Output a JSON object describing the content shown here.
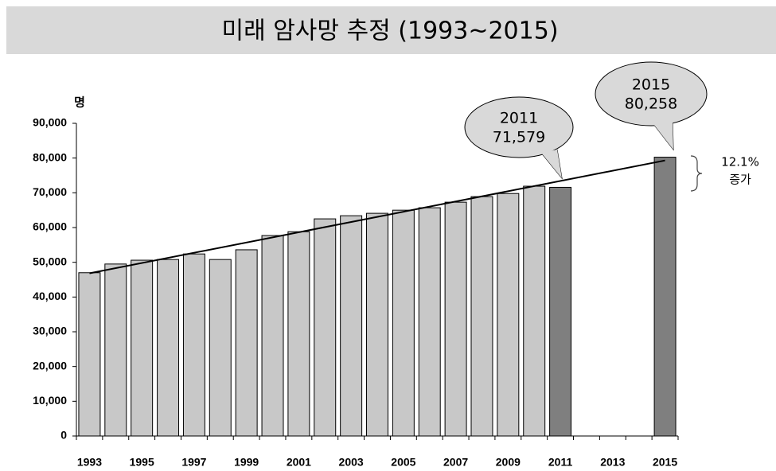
{
  "chart_data": {
    "type": "bar",
    "title": "미래 암사망 추정 (1993~2015)",
    "y_unit_label": "명",
    "categories": [
      "1993",
      null,
      "1995",
      null,
      "1997",
      null,
      "1999",
      null,
      "2001",
      null,
      "2003",
      null,
      "2005",
      null,
      "2007",
      null,
      "2009",
      null,
      "2011",
      null,
      "2013",
      null,
      "2015"
    ],
    "values": [
      47000,
      49500,
      50600,
      50800,
      52400,
      50800,
      53600,
      57700,
      58800,
      62500,
      63400,
      64100,
      65000,
      65700,
      67300,
      68900,
      69800,
      71900,
      71579,
      null,
      null,
      null,
      80258
    ],
    "colors": [
      "#c8c8c8",
      "#c8c8c8",
      "#c8c8c8",
      "#c8c8c8",
      "#c8c8c8",
      "#c8c8c8",
      "#c8c8c8",
      "#c8c8c8",
      "#c8c8c8",
      "#c8c8c8",
      "#c8c8c8",
      "#c8c8c8",
      "#c8c8c8",
      "#c8c8c8",
      "#c8c8c8",
      "#c8c8c8",
      "#c8c8c8",
      "#c8c8c8",
      "#7f7f7f",
      null,
      null,
      null,
      "#7f7f7f"
    ],
    "ylim": [
      0,
      90000
    ],
    "yticks": [
      0,
      {
        "value": 10000,
        "label": "10,000"
      },
      {
        "value": 20000,
        "label": "20,000"
      },
      {
        "value": 30000,
        "label": "30,000"
      },
      {
        "value": 40000,
        "label": "40,000"
      },
      {
        "value": 50000,
        "label": "50,000"
      },
      {
        "value": 60000,
        "label": "60,000"
      },
      {
        "value": 70000,
        "label": "70,000"
      },
      {
        "value": 80000,
        "label": "80,000"
      },
      {
        "value": 90000,
        "label": "90,000"
      }
    ],
    "trend_line": true,
    "annotations": [
      {
        "lines": [
          "2011",
          "71,579"
        ]
      },
      {
        "lines": [
          "2015",
          "80,258"
        ]
      },
      {
        "lines": [
          "12.1%",
          "증가"
        ]
      }
    ]
  }
}
